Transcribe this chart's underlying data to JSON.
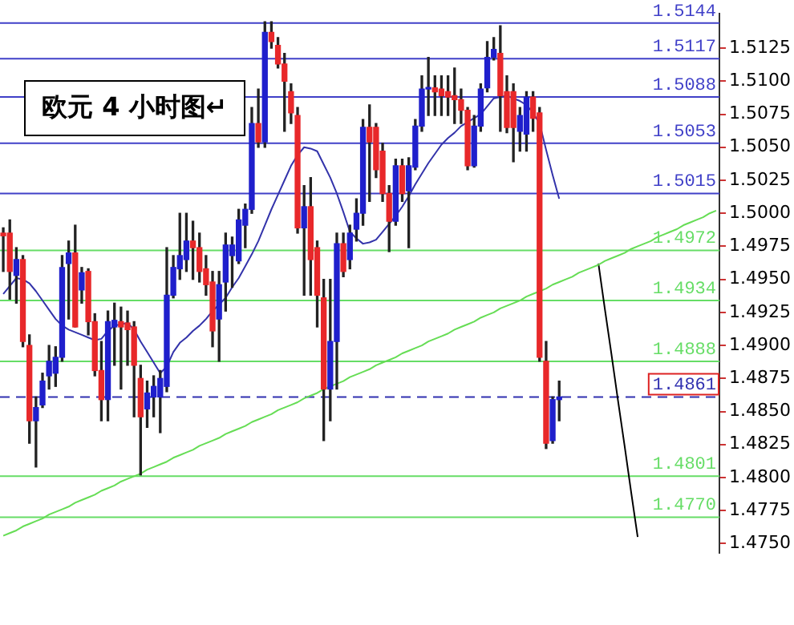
{
  "chart_data": {
    "type": "candlestick",
    "title": "欧元 4 小时图↵",
    "categories": [
      null,
      null,
      null,
      null,
      null,
      null,
      null,
      null,
      null,
      null,
      null,
      null,
      null,
      null,
      null,
      null,
      null,
      null,
      null,
      null,
      null,
      null,
      null,
      null,
      null,
      null,
      null,
      null,
      null,
      null,
      null,
      null,
      null,
      null,
      null,
      null,
      null,
      null,
      null,
      null,
      null,
      null,
      null,
      null,
      null,
      null,
      null,
      null,
      null,
      null,
      null,
      null,
      null,
      null,
      null,
      null,
      null,
      null,
      null,
      null,
      null,
      null,
      null,
      null,
      null,
      null,
      null,
      null,
      null,
      null,
      null,
      null,
      null,
      null,
      null,
      null,
      null,
      null,
      null,
      null,
      null,
      null,
      null,
      null,
      null,
      null,
      null,
      null,
      null,
      null,
      null,
      null,
      null,
      null,
      null,
      null,
      null,
      null,
      null,
      null,
      null,
      null,
      null,
      null,
      null,
      null,
      null,
      null,
      null,
      null
    ],
    "ylim": [
      1.4743,
      1.5151
    ],
    "tick_labels": "y",
    "yticks": [
      {
        "value": 1.475,
        "label": "1.4750"
      },
      {
        "value": 1.4775,
        "label": "1.4775"
      },
      {
        "value": 1.48,
        "label": "1.4800"
      },
      {
        "value": 1.4825,
        "label": "1.4825"
      },
      {
        "value": 1.485,
        "label": "1.4850"
      },
      {
        "value": 1.4875,
        "label": "1.4875"
      },
      {
        "value": 1.49,
        "label": "1.4900"
      },
      {
        "value": 1.4925,
        "label": "1.4925"
      },
      {
        "value": 1.495,
        "label": "1.4950"
      },
      {
        "value": 1.4975,
        "label": "1.4975"
      },
      {
        "value": 1.5,
        "label": "1.5000"
      },
      {
        "value": 1.5025,
        "label": "1.5025"
      },
      {
        "value": 1.505,
        "label": "1.5050"
      },
      {
        "value": 1.5075,
        "label": "1.5075"
      },
      {
        "value": 1.51,
        "label": "1.5100"
      },
      {
        "value": 1.5125,
        "label": "1.5125"
      }
    ],
    "ref_lines": [
      {
        "axis": "y",
        "value": 1.5144,
        "label": "1.5144",
        "color": "#4040c8"
      },
      {
        "axis": "y",
        "value": 1.5117,
        "label": "1.5117",
        "color": "#4040c8"
      },
      {
        "axis": "y",
        "value": 1.5088,
        "label": "1.5088",
        "color": "#4040c8"
      },
      {
        "axis": "y",
        "value": 1.5053,
        "label": "1.5053",
        "color": "#4040c8"
      },
      {
        "axis": "y",
        "value": 1.5015,
        "label": "1.5015",
        "color": "#4040c8"
      },
      {
        "axis": "y",
        "value": 1.4972,
        "label": "1.4972",
        "color": "#66dd66"
      },
      {
        "axis": "y",
        "value": 1.4934,
        "label": "1.4934",
        "color": "#66dd66"
      },
      {
        "axis": "y",
        "value": 1.4888,
        "label": "1.4888",
        "color": "#66dd66"
      },
      {
        "axis": "y",
        "value": 1.4861,
        "label": "1.4861",
        "color": "#3030b0",
        "line_style": "dashed"
      },
      {
        "axis": "y",
        "value": 1.4801,
        "label": "1.4801",
        "color": "#66dd66"
      },
      {
        "axis": "y",
        "value": 1.477,
        "label": "1.4770",
        "color": "#66dd66"
      }
    ],
    "ohlc": [
      [
        1.4985,
        1.4989,
        1.4956,
        1.4983
      ],
      [
        1.4985,
        1.4995,
        1.4935,
        1.4956
      ],
      [
        1.4953,
        1.4974,
        1.4932,
        1.4965
      ],
      [
        1.4965,
        1.4968,
        1.4899,
        1.4903
      ],
      [
        1.49,
        1.4908,
        1.4826,
        1.4843
      ],
      [
        1.4843,
        1.4861,
        1.4808,
        1.4853
      ],
      [
        1.4855,
        1.4879,
        1.4853,
        1.4873
      ],
      [
        1.4877,
        1.49,
        1.4867,
        1.4888
      ],
      [
        1.4879,
        1.4899,
        1.4869,
        1.4891
      ],
      [
        1.4891,
        1.4968,
        1.4888,
        1.4959
      ],
      [
        1.4962,
        1.4979,
        1.492,
        1.497
      ],
      [
        1.497,
        1.4991,
        1.4914,
        1.4914
      ],
      [
        1.4942,
        1.4959,
        1.4932,
        1.4955
      ],
      [
        1.4956,
        1.4958,
        1.4908,
        1.4918
      ],
      [
        1.4918,
        1.4924,
        1.4877,
        1.4881
      ],
      [
        1.4881,
        1.4903,
        1.4843,
        1.4859
      ],
      [
        1.4859,
        1.4926,
        1.4843,
        1.4918
      ],
      [
        1.4914,
        1.4932,
        1.4885,
        1.4919
      ],
      [
        1.4918,
        1.4929,
        1.4867,
        1.4914
      ],
      [
        1.4917,
        1.4926,
        1.4885,
        1.4912
      ],
      [
        1.4914,
        1.4918,
        1.4846,
        1.4885
      ],
      [
        1.4875,
        1.4885,
        1.4802,
        1.4846
      ],
      [
        1.4852,
        1.4873,
        1.4838,
        1.4864
      ],
      [
        1.4861,
        1.4877,
        1.4846,
        1.4869
      ],
      [
        1.4861,
        1.4881,
        1.4834,
        1.4875
      ],
      [
        1.4869,
        1.4974,
        1.4865,
        1.4938
      ],
      [
        1.4938,
        1.4968,
        1.4936,
        1.4959
      ],
      [
        1.4958,
        1.5,
        1.495,
        1.4968
      ],
      [
        1.4965,
        1.5,
        1.4956,
        1.4979
      ],
      [
        1.4979,
        1.4994,
        1.495,
        1.4974
      ],
      [
        1.4974,
        1.4985,
        1.4948,
        1.4956
      ],
      [
        1.4958,
        1.4968,
        1.4938,
        1.4946
      ],
      [
        1.4948,
        1.4956,
        1.4899,
        1.4911
      ],
      [
        1.492,
        1.4956,
        1.4888,
        1.4946
      ],
      [
        1.4948,
        1.4985,
        1.4926,
        1.4976
      ],
      [
        1.4968,
        1.4982,
        1.4944,
        1.4976
      ],
      [
        1.4964,
        1.5003,
        1.4962,
        1.4995
      ],
      [
        1.4991,
        1.5007,
        1.4974,
        1.5003
      ],
      [
        1.5003,
        1.508,
        1.5,
        1.5068
      ],
      [
        1.5068,
        1.5094,
        1.505,
        1.5054
      ],
      [
        1.5054,
        1.5145,
        1.505,
        1.5137
      ],
      [
        1.5137,
        1.5145,
        1.5125,
        1.513
      ],
      [
        1.5127,
        1.5133,
        1.511,
        1.5113
      ],
      [
        1.5113,
        1.5121,
        1.5062,
        1.51
      ],
      [
        1.5092,
        1.5098,
        1.5068,
        1.5076
      ],
      [
        1.5074,
        1.508,
        1.4985,
        1.4989
      ],
      [
        1.4989,
        1.5021,
        1.4938,
        1.5005
      ],
      [
        1.5005,
        1.5027,
        1.4938,
        1.4965
      ],
      [
        1.4974,
        1.4979,
        1.4914,
        1.4938
      ],
      [
        1.4936,
        1.495,
        1.4828,
        1.4867
      ],
      [
        1.4867,
        1.495,
        1.4843,
        1.4903
      ],
      [
        1.4903,
        1.4985,
        1.4867,
        1.4977
      ],
      [
        1.4977,
        1.4985,
        1.4952,
        1.4956
      ],
      [
        1.4965,
        1.4991,
        1.4958,
        1.4985
      ],
      [
        1.4988,
        1.5011,
        1.4979,
        1.5
      ],
      [
        1.5,
        1.5071,
        1.4991,
        1.5065
      ],
      [
        1.5065,
        1.5082,
        1.5009,
        1.5054
      ],
      [
        1.5065,
        1.5068,
        1.5027,
        1.5033
      ],
      [
        1.5047,
        1.5053,
        1.5009,
        1.5015
      ],
      [
        1.5015,
        1.5021,
        1.4971,
        1.4994
      ],
      [
        1.4994,
        1.5041,
        1.4991,
        1.5036
      ],
      [
        1.5036,
        1.5041,
        1.5009,
        1.5015
      ],
      [
        1.5017,
        1.5042,
        1.4974,
        1.5036
      ],
      [
        1.5035,
        1.5071,
        1.5033,
        1.5066
      ],
      [
        1.5066,
        1.5104,
        1.5062,
        1.5094
      ],
      [
        1.5094,
        1.5118,
        1.5074,
        1.5095
      ],
      [
        1.5095,
        1.5104,
        1.5074,
        1.5092
      ],
      [
        1.5094,
        1.5104,
        1.5074,
        1.5089
      ],
      [
        1.5092,
        1.5104,
        1.5074,
        1.5088
      ],
      [
        1.5089,
        1.511,
        1.5068,
        1.5086
      ],
      [
        1.5086,
        1.5094,
        1.5068,
        1.5078
      ],
      [
        1.5078,
        1.508,
        1.5033,
        1.5036
      ],
      [
        1.5036,
        1.5074,
        1.5035,
        1.5066
      ],
      [
        1.5066,
        1.5098,
        1.5062,
        1.5094
      ],
      [
        1.5095,
        1.513,
        1.5092,
        1.5118
      ],
      [
        1.5118,
        1.5133,
        1.5116,
        1.5124
      ],
      [
        1.5121,
        1.5142,
        1.5062,
        1.5089
      ],
      [
        1.5092,
        1.5104,
        1.5061,
        1.5065
      ],
      [
        1.5092,
        1.5098,
        1.5039,
        1.5065
      ],
      [
        1.5062,
        1.508,
        1.5047,
        1.5074
      ],
      [
        1.506,
        1.5092,
        1.5047,
        1.5088
      ],
      [
        1.5088,
        1.5092,
        1.5062,
        1.5072
      ],
      [
        1.5076,
        1.508,
        1.4888,
        1.4891
      ],
      [
        1.4888,
        1.4903,
        1.4822,
        1.4826
      ],
      [
        1.4828,
        1.4861,
        1.4826,
        1.4859
      ],
      [
        1.4859,
        1.4873,
        1.4843,
        1.4861
      ],
      null,
      null,
      null,
      null,
      null,
      null,
      null,
      null,
      null,
      null,
      null,
      null,
      null,
      null,
      null,
      null,
      null,
      null,
      null,
      null,
      null,
      null,
      null,
      null
    ],
    "colors": [
      "#e8282a",
      "#e8282a",
      "#1f1fcc",
      "#e8282a",
      "#e8282a",
      "#1f1fcc",
      "#1f1fcc",
      "#1f1fcc",
      "#1f1fcc",
      "#1f1fcc",
      "#1f1fcc",
      "#e8282a",
      "#1f1fcc",
      "#e8282a",
      "#e8282a",
      "#e8282a",
      "#1f1fcc",
      "#1f1fcc",
      "#e8282a",
      "#e8282a",
      "#e8282a",
      "#e8282a",
      "#1f1fcc",
      "#1f1fcc",
      "#1f1fcc",
      "#1f1fcc",
      "#1f1fcc",
      "#1f1fcc",
      "#1f1fcc",
      "#e8282a",
      "#e8282a",
      "#e8282a",
      "#e8282a",
      "#1f1fcc",
      "#1f1fcc",
      "#1f1fcc",
      "#1f1fcc",
      "#1f1fcc",
      "#1f1fcc",
      "#e8282a",
      "#1f1fcc",
      "#e8282a",
      "#e8282a",
      "#e8282a",
      "#e8282a",
      "#e8282a",
      "#1f1fcc",
      "#e8282a",
      "#e8282a",
      "#e8282a",
      "#1f1fcc",
      "#1f1fcc",
      "#e8282a",
      "#1f1fcc",
      "#1f1fcc",
      "#1f1fcc",
      "#e8282a",
      "#e8282a",
      "#e8282a",
      "#e8282a",
      "#1f1fcc",
      "#e8282a",
      "#1f1fcc",
      "#1f1fcc",
      "#1f1fcc",
      "#1f1fcc",
      "#e8282a",
      "#e8282a",
      "#e8282a",
      "#e8282a",
      "#e8282a",
      "#e8282a",
      "#1f1fcc",
      "#1f1fcc",
      "#1f1fcc",
      "#1f1fcc",
      "#e8282a",
      "#e8282a",
      "#e8282a",
      "#1f1fcc",
      "#1f1fcc",
      "#e8282a",
      "#e8282a",
      "#e8282a",
      "#1f1fcc",
      "#1f1fcc",
      null,
      null,
      null,
      null,
      null,
      null,
      null,
      null,
      null,
      null,
      null,
      null,
      null,
      null,
      null,
      null,
      null,
      null,
      null,
      null,
      null,
      null,
      null,
      null
    ],
    "series": [
      {
        "type": "line",
        "color": "#3333aa",
        "values": [
          1.4939,
          1.4945,
          1.4951,
          1.495,
          1.4947,
          1.4941,
          1.4934,
          1.4927,
          1.492,
          1.4915,
          1.4912,
          1.491,
          1.4908,
          1.4906,
          1.4904,
          1.4905,
          1.4911,
          1.4915,
          1.4916,
          1.4917,
          1.4912,
          1.4903,
          1.4895,
          1.4887,
          1.4879,
          1.4884,
          1.4895,
          1.4902,
          1.4906,
          1.4911,
          1.4915,
          1.492,
          1.4926,
          1.4931,
          1.4936,
          1.4944,
          1.4951,
          1.496,
          1.4969,
          1.4979,
          1.4991,
          1.5003,
          1.5014,
          1.5025,
          1.5036,
          1.5044,
          1.505,
          1.5049,
          1.5047,
          1.5037,
          1.5027,
          1.5015,
          1.5001,
          1.4986,
          1.4981,
          1.4977,
          1.4978,
          1.498,
          1.4986,
          1.4992,
          1.4998,
          1.5005,
          1.5013,
          1.5022,
          1.503,
          1.5038,
          1.5045,
          1.5052,
          1.5057,
          1.5061,
          1.5066,
          1.5069,
          1.5072,
          1.5075,
          1.5081,
          1.5087,
          1.5088,
          1.5089,
          1.5087,
          1.5085,
          1.5082,
          1.5076,
          1.5068,
          1.5048,
          1.5029,
          1.5011,
          null,
          null,
          null,
          null,
          null,
          null,
          null,
          null,
          null,
          null,
          null,
          null,
          null,
          null,
          null,
          null,
          null,
          null,
          null,
          null,
          null,
          null,
          null,
          null
        ]
      },
      {
        "type": "line",
        "color": "#66dd55",
        "values": [
          1.4756,
          1.4758,
          1.476,
          1.4763,
          1.4765,
          1.4767,
          1.4769,
          1.4772,
          1.4774,
          1.4776,
          1.4778,
          1.4781,
          1.4783,
          1.4785,
          1.4787,
          1.479,
          1.4792,
          1.4794,
          1.4797,
          1.4799,
          1.4801,
          1.4803,
          1.4806,
          1.4808,
          1.481,
          1.4812,
          1.4815,
          1.4817,
          1.4819,
          1.4821,
          1.4824,
          1.4826,
          1.4828,
          1.483,
          1.4833,
          1.4835,
          1.4837,
          1.4839,
          1.4842,
          1.4844,
          1.4846,
          1.4848,
          1.4851,
          1.4853,
          1.4855,
          1.4857,
          1.486,
          1.4862,
          1.4864,
          1.4867,
          1.4869,
          1.4871,
          1.4873,
          1.4876,
          1.4878,
          1.488,
          1.4882,
          1.4885,
          1.4887,
          1.4889,
          1.4891,
          1.4894,
          1.4896,
          1.4898,
          1.49,
          1.4903,
          1.4905,
          1.4907,
          1.4909,
          1.4912,
          1.4914,
          1.4916,
          1.4918,
          1.4921,
          1.4923,
          1.4925,
          1.4928,
          1.493,
          1.4932,
          1.4934,
          1.4937,
          1.4939,
          1.4941,
          1.4943,
          1.4946,
          1.4948,
          1.495,
          1.4952,
          1.4955,
          1.4957,
          1.4959,
          1.4961,
          1.4964,
          1.4966,
          1.4968,
          1.497,
          1.4973,
          1.4975,
          1.4977,
          1.4979,
          1.4982,
          1.4984,
          1.4986,
          1.4988,
          1.4991,
          1.4993,
          1.4995,
          1.4997,
          1.5,
          1.5002
        ]
      },
      {
        "type": "line",
        "color": "#000000",
        "values": [
          null,
          null,
          null,
          null,
          null,
          null,
          null,
          null,
          null,
          null,
          null,
          null,
          null,
          null,
          null,
          null,
          null,
          null,
          null,
          null,
          null,
          null,
          null,
          null,
          null,
          null,
          null,
          null,
          null,
          null,
          null,
          null,
          null,
          null,
          null,
          null,
          null,
          null,
          null,
          null,
          null,
          null,
          null,
          null,
          null,
          null,
          null,
          null,
          null,
          null,
          null,
          null,
          null,
          null,
          null,
          null,
          null,
          null,
          null,
          null,
          null,
          null,
          null,
          null,
          null,
          null,
          null,
          null,
          null,
          null,
          null,
          null,
          null,
          null,
          null,
          null,
          null,
          null,
          null,
          null,
          null,
          null,
          null,
          null,
          null,
          null,
          null,
          null,
          null,
          null,
          null,
          1.4962,
          1.4927,
          1.4893,
          1.4858,
          1.4824,
          1.4789,
          1.4755,
          null,
          null,
          null,
          null,
          null,
          null,
          null,
          null,
          null,
          null,
          null,
          null
        ]
      }
    ]
  }
}
